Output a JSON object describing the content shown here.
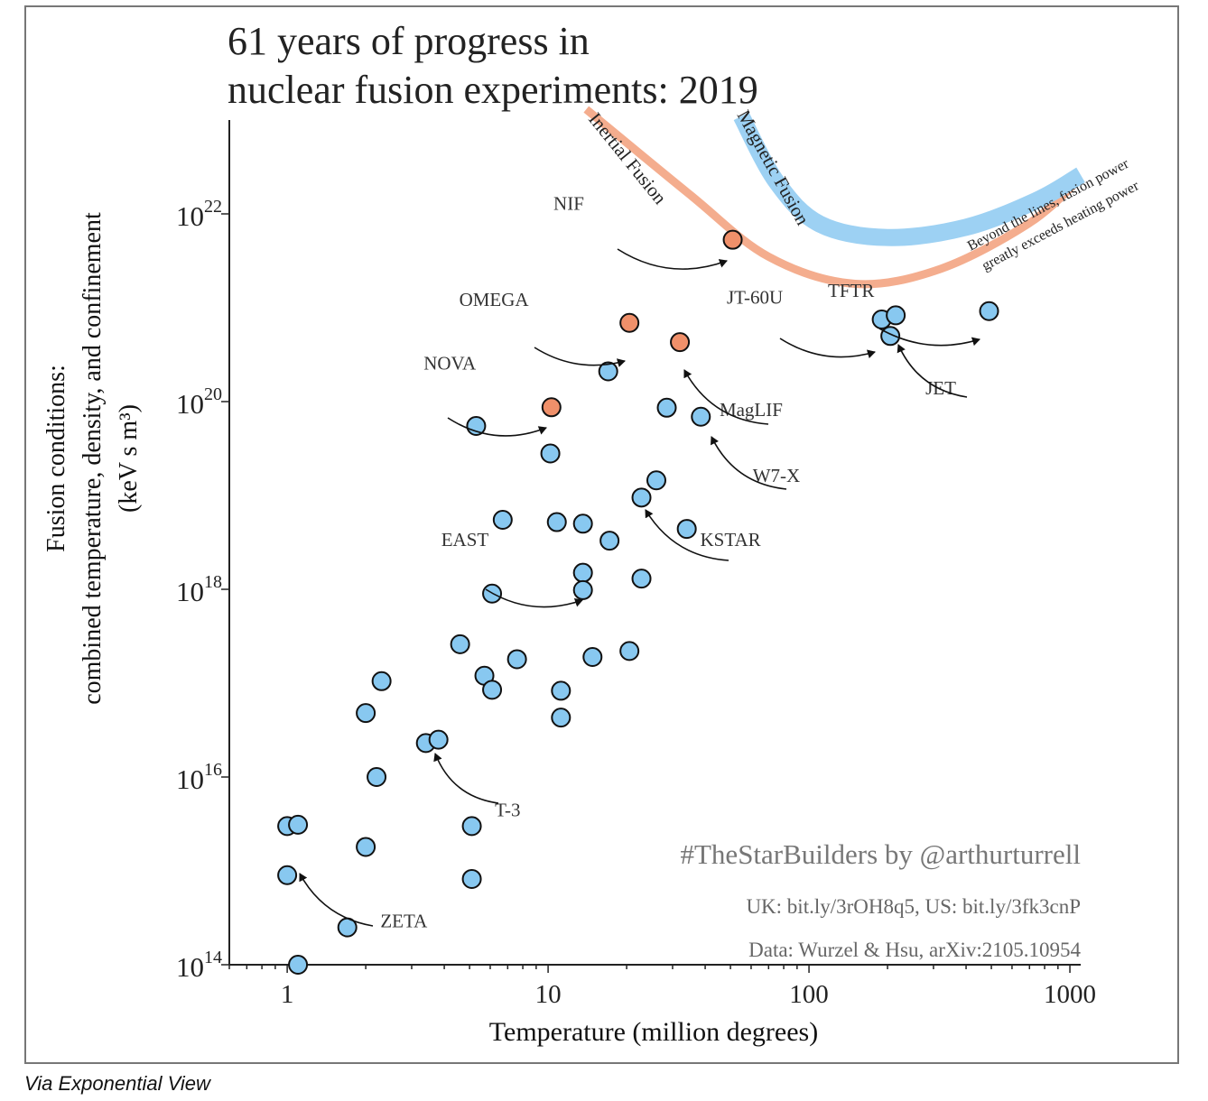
{
  "caption": "Via Exponential View",
  "colors": {
    "blue": "#88c8f0",
    "orange": "#f0906a",
    "inertial_band": "#f4ad8e",
    "magnetic_band": "#9dd1f3",
    "axis": "#222222"
  },
  "chart_data": {
    "type": "scatter",
    "title_lines": [
      "61 years of progress in",
      "nuclear fusion experiments: 2019"
    ],
    "xlabel": "Temperature (million degrees)",
    "ylabel_lines": [
      "Fusion conditions:",
      "combined temperature, density, and confinement",
      "(keV s m³)"
    ],
    "x_scale": "log",
    "y_scale": "log",
    "xlim": [
      0.6,
      1100
    ],
    "ylim": [
      100000000000000.0,
      1e+23
    ],
    "x_ticks": [
      {
        "value": 1,
        "label": "1"
      },
      {
        "value": 10,
        "label": "10"
      },
      {
        "value": 100,
        "label": "100"
      },
      {
        "value": 1000,
        "label": "1000"
      }
    ],
    "y_ticks": [
      {
        "exp": 14,
        "base": "10",
        "sup": "14"
      },
      {
        "exp": 16,
        "base": "10",
        "sup": "16"
      },
      {
        "exp": 18,
        "base": "10",
        "sup": "18"
      },
      {
        "exp": 20,
        "base": "10",
        "sup": "20"
      },
      {
        "exp": 22,
        "base": "10",
        "sup": "22"
      }
    ],
    "grid": false,
    "series": [
      {
        "kind": "magnetic",
        "color": "#88c8f0",
        "points": [
          {
            "x": 1.0,
            "y": 3000000000000000.0
          },
          {
            "x": 1.1,
            "y": 3100000000000000.0
          },
          {
            "x": 1.0,
            "y": 900000000000000.0
          },
          {
            "x": 1.7,
            "y": 250000000000000.0
          },
          {
            "x": 1.1,
            "y": 100000000000000.0
          },
          {
            "x": 2.0,
            "y": 1800000000000000.0
          },
          {
            "x": 2.2,
            "y": 1e+16
          },
          {
            "x": 2.0,
            "y": 4.8e+16
          },
          {
            "x": 2.3,
            "y": 1.05e+17
          },
          {
            "x": 3.4,
            "y": 2.3e+16
          },
          {
            "x": 3.8,
            "y": 2.5e+16
          },
          {
            "x": 5.1,
            "y": 3000000000000000.0
          },
          {
            "x": 5.1,
            "y": 820000000000000.0
          },
          {
            "x": 4.6,
            "y": 2.6e+17
          },
          {
            "x": 5.7,
            "y": 1.2e+17
          },
          {
            "x": 6.1,
            "y": 8.5e+16
          },
          {
            "x": 7.6,
            "y": 1.8e+17
          },
          {
            "x": 6.1,
            "y": 9e+17
          },
          {
            "x": 6.7,
            "y": 5.5e+18
          },
          {
            "x": 5.3,
            "y": 5.5e+19
          },
          {
            "x": 10.2,
            "y": 2.8e+19
          },
          {
            "x": 10.8,
            "y": 5.2e+18
          },
          {
            "x": 13.6,
            "y": 5e+18
          },
          {
            "x": 13.6,
            "y": 1.5e+18
          },
          {
            "x": 13.6,
            "y": 9.8e+17
          },
          {
            "x": 17.2,
            "y": 3.3e+18
          },
          {
            "x": 11.2,
            "y": 8.3e+16
          },
          {
            "x": 11.2,
            "y": 4.3e+16
          },
          {
            "x": 14.8,
            "y": 1.9e+17
          },
          {
            "x": 20.5,
            "y": 2.2e+17
          },
          {
            "x": 22.8,
            "y": 1.3e+18
          },
          {
            "x": 22.8,
            "y": 9.5e+18
          },
          {
            "x": 26,
            "y": 1.45e+19
          },
          {
            "x": 34,
            "y": 4.4e+18
          },
          {
            "x": 28.5,
            "y": 8.6e+19
          },
          {
            "x": 38.5,
            "y": 6.9e+19
          },
          {
            "x": 17,
            "y": 2.1e+20
          },
          {
            "x": 190,
            "y": 7.5e+20
          },
          {
            "x": 215,
            "y": 8.3e+20
          },
          {
            "x": 205,
            "y": 5e+20
          },
          {
            "x": 490,
            "y": 9.2e+20
          }
        ]
      },
      {
        "kind": "inertial",
        "color": "#f0906a",
        "points": [
          {
            "x": 10.3,
            "y": 8.7e+19
          },
          {
            "x": 20.5,
            "y": 6.9e+20
          },
          {
            "x": 32,
            "y": 4.3e+20
          },
          {
            "x": 51,
            "y": 5.3e+21
          }
        ]
      }
    ],
    "bands": [
      {
        "label": "Inertial Fusion",
        "points": [
          {
            "x": 14,
            "y": 1.3e+23
          },
          {
            "x": 35,
            "y": 1.6e+22
          },
          {
            "x": 70,
            "y": 3.5e+21
          },
          {
            "x": 150,
            "y": 1.8e+21
          },
          {
            "x": 320,
            "y": 2.6e+21
          },
          {
            "x": 700,
            "y": 8e+21
          },
          {
            "x": 1100,
            "y": 2.4e+22
          }
        ]
      },
      {
        "label": "Magnetic Fusion",
        "points": [
          {
            "x": 55,
            "y": 1.1e+23
          },
          {
            "x": 75,
            "y": 2.2e+22
          },
          {
            "x": 110,
            "y": 7.8e+21
          },
          {
            "x": 200,
            "y": 5.6e+21
          },
          {
            "x": 400,
            "y": 7.2e+21
          },
          {
            "x": 750,
            "y": 1.4e+22
          },
          {
            "x": 1100,
            "y": 2.6e+22
          }
        ]
      }
    ],
    "annotations": [
      {
        "text": "NIF",
        "label_x": 12,
        "label_y": 1.1e+22
      },
      {
        "text": "OMEGA",
        "label_x": 6.2,
        "label_y": 1.05e+21
      },
      {
        "text": "NOVA",
        "label_x": 4.2,
        "label_y": 2.2e+20
      },
      {
        "text": "JT-60U",
        "label_x": 62,
        "label_y": 1.1e+21
      },
      {
        "text": "TFTR",
        "label_x": 145,
        "label_y": 1.3e+21
      },
      {
        "text": "JET",
        "label_x": 320,
        "label_y": 1.2e+20
      },
      {
        "text": "MagLIF",
        "label_x": 60,
        "label_y": 7e+19
      },
      {
        "text": "W7-X",
        "label_x": 75,
        "label_y": 1.4e+19
      },
      {
        "text": "KSTAR",
        "label_x": 50,
        "label_y": 2.9e+18
      },
      {
        "text": "EAST",
        "label_x": 4.8,
        "label_y": 2.9e+18
      },
      {
        "text": "T-3",
        "label_x": 7.0,
        "label_y": 3800000000000000.0
      },
      {
        "text": "ZETA",
        "label_x": 2.8,
        "label_y": 250000000000000.0
      }
    ],
    "band_note_lines": [
      "Beyond the lines, fusion power",
      "greatly exceeds heating power"
    ],
    "credit_lines": [
      "#TheStarBuilders by @arthurturrell",
      "UK: bit.ly/3rOH8q5, US: bit.ly/3fk3cnP",
      "Data: Wurzel & Hsu, arXiv:2105.10954"
    ]
  }
}
